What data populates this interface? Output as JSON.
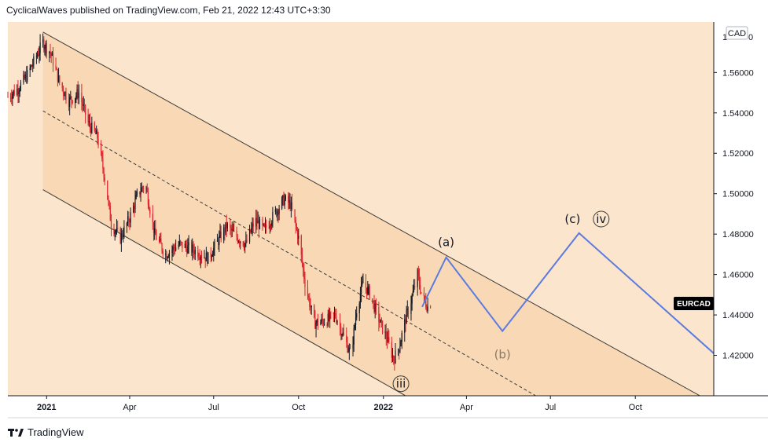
{
  "header": {
    "text": "CyclicalWaves published on TradingView.com, Feb 21, 2022 12:43 UTC+3:30"
  },
  "footer": {
    "brand": "TradingView",
    "logo_icon": "tradingview-logo-icon"
  },
  "chart_data": {
    "type": "candlestick",
    "symbol_tag": "EURCAD",
    "currency_tag": "CAD",
    "top_tick_fragment": "1",
    "top_tick_suffix": "0",
    "y_ticks": [
      "1.56000",
      "1.54000",
      "1.52000",
      "1.50000",
      "1.48000",
      "1.46000",
      "1.44000",
      "1.42000"
    ],
    "y_tick_values": [
      1.56,
      1.54,
      1.52,
      1.5,
      1.48,
      1.46,
      1.44,
      1.42
    ],
    "x_ticks": [
      {
        "label": "2021",
        "date": "2021-01-01",
        "bold": true
      },
      {
        "label": "Apr",
        "date": "2021-04-01",
        "bold": false
      },
      {
        "label": "Jul",
        "date": "2021-07-01",
        "bold": false
      },
      {
        "label": "Oct",
        "date": "2021-10-01",
        "bold": false
      },
      {
        "label": "2022",
        "date": "2022-01-01",
        "bold": true
      },
      {
        "label": "Apr",
        "date": "2022-04-01",
        "bold": false
      },
      {
        "label": "Jul",
        "date": "2022-07-01",
        "bold": false
      },
      {
        "label": "Oct",
        "date": "2022-10-01",
        "bold": false
      }
    ],
    "ylim": [
      1.4,
      1.585
    ],
    "xlim": [
      "2020-11-20",
      "2022-12-25"
    ],
    "price_path": [
      [
        "2020-11-20",
        1.548
      ],
      [
        "2020-12-01",
        1.552
      ],
      [
        "2020-12-10",
        1.558
      ],
      [
        "2020-12-20",
        1.567
      ],
      [
        "2020-12-28",
        1.575
      ],
      [
        "2021-01-05",
        1.57
      ],
      [
        "2021-01-15",
        1.555
      ],
      [
        "2021-01-25",
        1.546
      ],
      [
        "2021-02-05",
        1.55
      ],
      [
        "2021-02-15",
        1.535
      ],
      [
        "2021-02-25",
        1.528
      ],
      [
        "2021-03-05",
        1.508
      ],
      [
        "2021-03-12",
        1.485
      ],
      [
        "2021-03-22",
        1.478
      ],
      [
        "2021-04-01",
        1.488
      ],
      [
        "2021-04-10",
        1.5
      ],
      [
        "2021-04-18",
        1.505
      ],
      [
        "2021-04-28",
        1.48
      ],
      [
        "2021-05-10",
        1.47
      ],
      [
        "2021-05-25",
        1.475
      ],
      [
        "2021-06-10",
        1.472
      ],
      [
        "2021-06-25",
        1.468
      ],
      [
        "2021-07-05",
        1.476
      ],
      [
        "2021-07-15",
        1.484
      ],
      [
        "2021-07-25",
        1.479
      ],
      [
        "2021-08-05",
        1.475
      ],
      [
        "2021-08-15",
        1.487
      ],
      [
        "2021-08-25",
        1.482
      ],
      [
        "2021-09-05",
        1.49
      ],
      [
        "2021-09-15",
        1.497
      ],
      [
        "2021-09-22",
        1.495
      ],
      [
        "2021-10-01",
        1.478
      ],
      [
        "2021-10-08",
        1.456
      ],
      [
        "2021-10-18",
        1.436
      ],
      [
        "2021-10-30",
        1.437
      ],
      [
        "2021-11-10",
        1.44
      ],
      [
        "2021-11-20",
        1.428
      ],
      [
        "2021-11-27",
        1.42
      ],
      [
        "2021-12-03",
        1.443
      ],
      [
        "2021-12-10",
        1.456
      ],
      [
        "2021-12-18",
        1.45
      ],
      [
        "2021-12-25",
        1.44
      ],
      [
        "2022-01-05",
        1.428
      ],
      [
        "2022-01-12",
        1.418
      ],
      [
        "2022-01-18",
        1.424
      ],
      [
        "2022-01-25",
        1.438
      ],
      [
        "2022-01-31",
        1.447
      ],
      [
        "2022-02-07",
        1.46
      ],
      [
        "2022-02-12",
        1.449
      ],
      [
        "2022-02-18",
        1.444
      ],
      [
        "2022-02-21",
        1.446
      ]
    ],
    "channel": {
      "upper": [
        [
          "2020-12-28",
          1.58
        ],
        [
          "2022-12-10",
          1.4
        ]
      ],
      "middle": [
        [
          "2020-12-28",
          1.541
        ],
        [
          "2022-06-15",
          1.4
        ]
      ],
      "lower": [
        [
          "2020-12-28",
          1.502
        ],
        [
          "2022-01-25",
          1.4
        ]
      ],
      "fill_color": "#f5cfa2",
      "line_color": "#3a3a3a"
    },
    "projection": {
      "color": "#5b7be0",
      "points": [
        [
          "2022-02-12",
          1.444
        ],
        [
          "2022-03-10",
          1.4685
        ],
        [
          "2022-05-10",
          1.432
        ],
        [
          "2022-08-01",
          1.4805
        ],
        [
          "2022-12-25",
          1.421
        ]
      ]
    },
    "wave_labels": [
      {
        "text": "(a)",
        "date": "2022-03-10",
        "price": 1.474,
        "circled": false,
        "muted": false
      },
      {
        "text": "(b)",
        "date": "2022-05-10",
        "price": 1.4185,
        "circled": false,
        "muted": true
      },
      {
        "text": "(c)",
        "date": "2022-07-25",
        "price": 1.4855,
        "circled": false,
        "muted": false
      },
      {
        "text": "iv",
        "date": "2022-08-25",
        "price": 1.4855,
        "circled": true,
        "muted": false
      },
      {
        "text": "iii",
        "date": "2022-01-20",
        "price": 1.404,
        "circled": true,
        "muted": false
      }
    ],
    "colors": {
      "background": "#fce5cd",
      "up": "#131722",
      "down": "#e0232f",
      "symbol_tag_bg": "#000000"
    }
  }
}
